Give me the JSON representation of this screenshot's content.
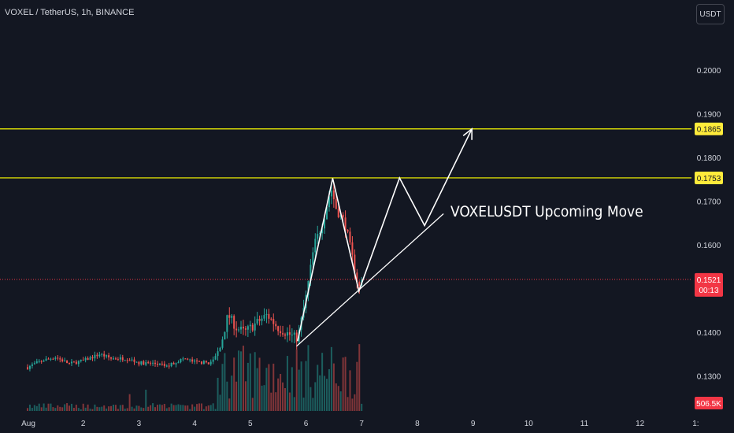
{
  "header": {
    "title": "VOXEL / TetherUS, 1h, BINANCE",
    "currency_button": "USDT"
  },
  "colors": {
    "background": "#131722",
    "up": "#26a69a",
    "down": "#ef5350",
    "level_line": "#ffff00",
    "label_yellow": "#ffeb3b",
    "price_red": "#f23645",
    "annotation": "#ffffff",
    "axis_text": "#d1d4dc"
  },
  "chart_data": {
    "type": "candlestick",
    "symbol": "VOXELUSDT",
    "timeframe": "1h",
    "x_axis": {
      "tick_labels": [
        "Aug",
        "2",
        "3",
        "4",
        "5",
        "6",
        "7",
        "8",
        "9",
        "10",
        "11",
        "12",
        "1:"
      ]
    },
    "y_axis": {
      "range": [
        0.122,
        0.2095
      ],
      "tick_labels": [
        "0.2000",
        "0.1900",
        "0.1800",
        "0.1700",
        "0.1600",
        "0.1400",
        "0.1300"
      ]
    },
    "horizontal_levels": [
      {
        "price": 0.1865,
        "label": "0.1865"
      },
      {
        "price": 0.1753,
        "label": "0.1753"
      }
    ],
    "current_price": {
      "value": 0.1521,
      "label": "0.1521",
      "countdown": "00:13"
    },
    "volume_label": "506.5K",
    "annotation_text": "VOXELUSDT Upcoming Move",
    "trendline": {
      "from": {
        "day": 5.83,
        "price": 0.1368
      },
      "to": {
        "day": 8.47,
        "price": 0.1671
      }
    },
    "projection_path": [
      {
        "day": 5.85,
        "price": 0.138
      },
      {
        "day": 6.48,
        "price": 0.1752
      },
      {
        "day": 6.95,
        "price": 0.1494
      },
      {
        "day": 7.68,
        "price": 0.1753
      },
      {
        "day": 8.13,
        "price": 0.1644
      },
      {
        "day": 8.98,
        "price": 0.1865
      }
    ],
    "price_path": [
      {
        "day": 1.0,
        "price": 0.132
      },
      {
        "day": 1.25,
        "price": 0.1335
      },
      {
        "day": 1.5,
        "price": 0.1343
      },
      {
        "day": 1.75,
        "price": 0.1328
      },
      {
        "day": 2.0,
        "price": 0.1335
      },
      {
        "day": 2.3,
        "price": 0.135
      },
      {
        "day": 2.5,
        "price": 0.134
      },
      {
        "day": 2.8,
        "price": 0.134
      },
      {
        "day": 3.0,
        "price": 0.133
      },
      {
        "day": 3.3,
        "price": 0.1328
      },
      {
        "day": 3.5,
        "price": 0.1322
      },
      {
        "day": 3.8,
        "price": 0.134
      },
      {
        "day": 4.0,
        "price": 0.1332
      },
      {
        "day": 4.3,
        "price": 0.133
      },
      {
        "day": 4.45,
        "price": 0.136
      },
      {
        "day": 4.6,
        "price": 0.144
      },
      {
        "day": 4.75,
        "price": 0.141
      },
      {
        "day": 4.9,
        "price": 0.14
      },
      {
        "day": 5.1,
        "price": 0.142
      },
      {
        "day": 5.3,
        "price": 0.144
      },
      {
        "day": 5.5,
        "price": 0.141
      },
      {
        "day": 5.7,
        "price": 0.1395
      },
      {
        "day": 5.85,
        "price": 0.1385
      },
      {
        "day": 6.0,
        "price": 0.148
      },
      {
        "day": 6.15,
        "price": 0.16
      },
      {
        "day": 6.3,
        "price": 0.165
      },
      {
        "day": 6.45,
        "price": 0.173
      },
      {
        "day": 6.55,
        "price": 0.168
      },
      {
        "day": 6.7,
        "price": 0.165
      },
      {
        "day": 6.85,
        "price": 0.156
      },
      {
        "day": 6.95,
        "price": 0.15
      },
      {
        "day": 7.0,
        "price": 0.1521
      }
    ]
  }
}
